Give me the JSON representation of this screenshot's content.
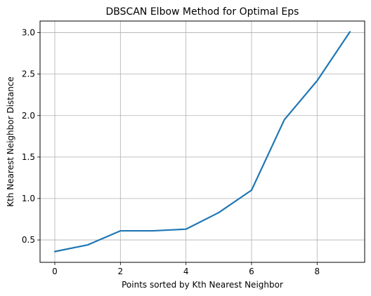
{
  "chart_data": {
    "type": "line",
    "title": "DBSCAN Elbow Method for Optimal Eps",
    "xlabel": "Points sorted by Kth Nearest Neighbor",
    "ylabel": "Kth Nearest Neighbor Distance",
    "x": [
      0,
      1,
      2,
      3,
      4,
      5,
      6,
      7,
      8,
      9
    ],
    "series": [
      {
        "values": [
          0.36,
          0.44,
          0.61,
          0.61,
          0.63,
          0.83,
          1.1,
          1.95,
          2.42,
          3.01
        ]
      }
    ],
    "xlim": [
      -0.45,
      9.45
    ],
    "ylim": [
      0.23,
      3.14
    ],
    "xticks": [
      0,
      2,
      4,
      6,
      8
    ],
    "yticks": [
      0.5,
      1.0,
      1.5,
      2.0,
      2.5,
      3.0
    ],
    "grid": true,
    "line_color": "#1f77b4",
    "grid_color": "#b0b0b0"
  }
}
